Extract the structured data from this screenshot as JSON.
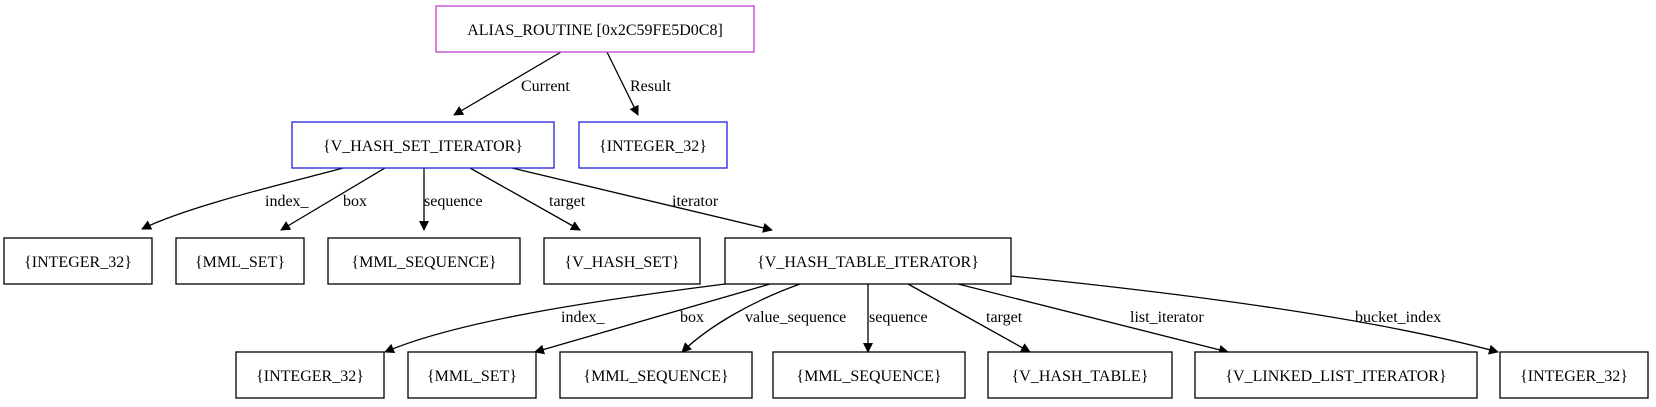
{
  "colors": {
    "root_border": "#c040d0",
    "blue_border": "#2020e0",
    "default_border": "#000000"
  },
  "nodes": {
    "root": {
      "label": "ALIAS_ROUTINE [0x2C59FE5D0C8]"
    },
    "hset_iter": {
      "label": "{V_HASH_SET_ITERATOR}"
    },
    "int_result": {
      "label": "{INTEGER_32}"
    },
    "int_index1": {
      "label": "{INTEGER_32}"
    },
    "mml_set1": {
      "label": "{MML_SET}"
    },
    "mml_seq1": {
      "label": "{MML_SEQUENCE}"
    },
    "v_hash_set": {
      "label": "{V_HASH_SET}"
    },
    "htable_iter": {
      "label": "{V_HASH_TABLE_ITERATOR}"
    },
    "int_index2": {
      "label": "{INTEGER_32}"
    },
    "mml_set2": {
      "label": "{MML_SET}"
    },
    "mml_seq_value": {
      "label": "{MML_SEQUENCE}"
    },
    "mml_seq2": {
      "label": "{MML_SEQUENCE}"
    },
    "v_hash_table": {
      "label": "{V_HASH_TABLE}"
    },
    "ll_iter": {
      "label": "{V_LINKED_LIST_ITERATOR}"
    },
    "int_bucket": {
      "label": "{INTEGER_32}"
    }
  },
  "edges": {
    "current": "Current",
    "result": "Result",
    "index1": "index_",
    "box1": "box",
    "sequence1": "sequence",
    "target1": "target",
    "iterator": "iterator",
    "index2": "index_",
    "box2": "box",
    "value_sequence": "value_sequence",
    "sequence2": "sequence",
    "target2": "target",
    "list_iterator": "list_iterator",
    "bucket_index": "bucket_index"
  }
}
